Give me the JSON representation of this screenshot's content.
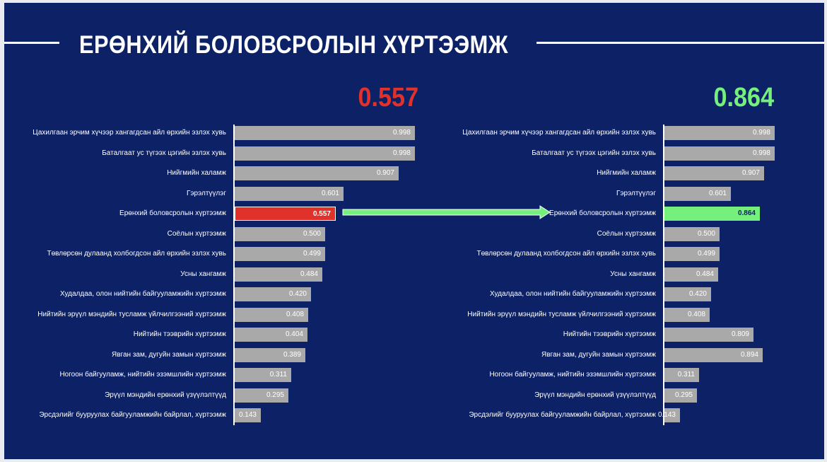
{
  "title": "ЕРӨНХИЙ БОЛОВСРОЛЫН ХҮРТЭЭМЖ",
  "colors": {
    "background": "#0c2166",
    "bar": "#a9a9a9",
    "before_highlight": "#e0322a",
    "after_highlight": "#75f07d",
    "before_score": "#e0322a",
    "after_score": "#75f07d"
  },
  "chart_data": [
    {
      "type": "bar",
      "orientation": "horizontal",
      "headline_value": "0.557",
      "highlight_index": 4,
      "xlim": [
        0,
        1
      ],
      "categories": [
        "Цахилгаан эрчим хүчээр хангагдсан айл өрхийн эзлэх хувь",
        "Баталгаат ус түгээх цэгийн эзлэх хувь",
        "Нийгмийн халамж",
        "Гэрэлтүүлэг",
        "Ерөнхий боловсролын хүртээмж",
        "Соёлын хүртээмж",
        "Төвлөрсөн дулаанд холбогдсон айл өрхийн эзлэх хувь",
        "Усны хангамж",
        "Худалдаа, олон нийтийн байгууламжийн хүртээмж",
        "Нийтийн эрүүл мэндийн тусламж үйлчилгээний хүртээмж",
        "Нийтийн тээврийн хүртээмж",
        "Явган зам, дугуйн замын хүртээмж",
        "Ногоон байгууламж, нийтийн эзэмшлийн хүртээмж",
        "Эрүүл мэндийн ерөнхий үзүүлэлтүүд",
        "Эрсдэлийг бууруулах байгууламжийн байрлал, хүртээмж"
      ],
      "values": [
        0.998,
        0.998,
        0.907,
        0.601,
        0.557,
        0.5,
        0.499,
        0.484,
        0.42,
        0.408,
        0.404,
        0.389,
        0.311,
        0.295,
        0.143
      ],
      "value_labels": [
        "0.998",
        "0.998",
        "0.907",
        "0.601",
        "0.557",
        "0.500",
        "0.499",
        "0.484",
        "0.420",
        "0.408",
        "0.404",
        "0.389",
        "0.311",
        "0.295",
        "0.143"
      ]
    },
    {
      "type": "bar",
      "orientation": "horizontal",
      "headline_value": "0.864",
      "highlight_index": 4,
      "xlim": [
        0,
        1
      ],
      "categories": [
        "Цахилгаан эрчим хүчээр хангагдсан айл өрхийн эзлэх хувь",
        "Баталгаат ус түгээх цэгийн эзлэх хувь",
        "Нийгмийн халамж",
        "Гэрэлтүүлэг",
        "Ерөнхий боловсролын хүртээмж",
        "Соёлын хүртээмж",
        "Төвлөрсөн дулаанд холбогдсон айл өрхийн эзлэх хувь",
        "Усны хангамж",
        "Худалдаа, олон нийтийн байгууламжийн хүртээмж",
        "Нийтийн эрүүл мэндийн тусламж үйлчилгээний хүртээмж",
        "Нийтийн тээврийн хүртээмж",
        "Явган зам, дугуйн замын хүртээмж",
        "Ногоон байгууламж, нийтийн эзэмшлийн хүртээмж",
        "Эрүүл мэндийн ерөнхий үзүүлэлтүүд",
        "Эрсдэлийг бууруулах байгууламжийн байрлал, хүртээмж"
      ],
      "values": [
        0.998,
        0.998,
        0.907,
        0.601,
        0.864,
        0.5,
        0.499,
        0.484,
        0.42,
        0.408,
        0.809,
        0.894,
        0.311,
        0.295,
        0.143
      ],
      "value_labels": [
        "0.998",
        "0.998",
        "0.907",
        "0.601",
        "0.864",
        "0.500",
        "0.499",
        "0.484",
        "0.420",
        "0.408",
        "0.809",
        "0.894",
        "0.311",
        "0.295",
        "0.143"
      ]
    }
  ]
}
